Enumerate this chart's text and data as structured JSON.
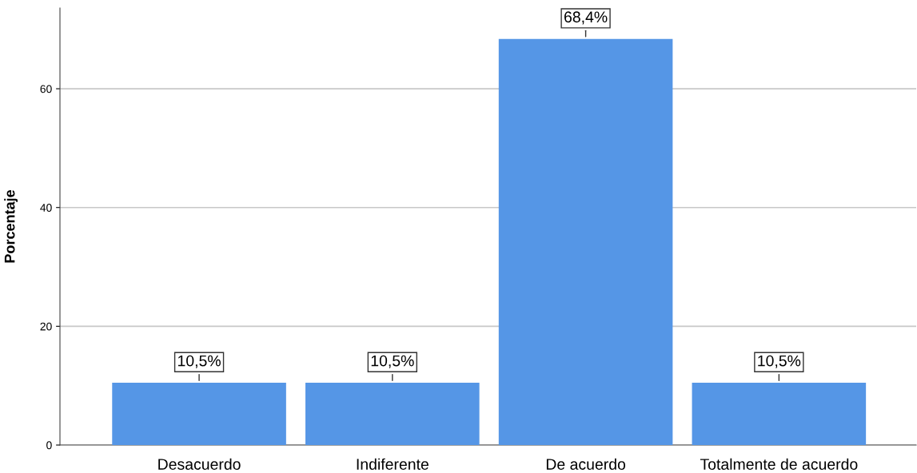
{
  "chart_data": {
    "type": "bar",
    "ylabel": "Porcentaje",
    "categories": [
      "Desacuerdo",
      "Indiferente",
      "De acuerdo",
      "Totalmente de acuerdo"
    ],
    "values": [
      10.5,
      10.5,
      68.4,
      10.5
    ],
    "color": "#5596e6",
    "value_labels": [
      "10,5%",
      "10,5%",
      "68,4%",
      "10,5%"
    ],
    "ylim": [
      0,
      73.6
    ],
    "yticks": [
      0,
      20,
      40,
      60
    ],
    "grid": "y"
  }
}
